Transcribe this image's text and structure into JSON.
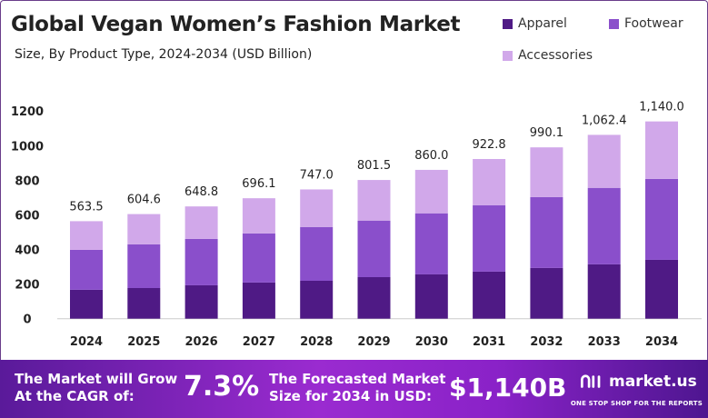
{
  "header": {
    "title": "Global Vegan Women’s Fashion Market",
    "subtitle": "Size, By Product Type, 2024-2034 (USD Billion)"
  },
  "chart_data": {
    "type": "bar",
    "stacked": true,
    "categories": [
      "2024",
      "2025",
      "2026",
      "2027",
      "2028",
      "2029",
      "2030",
      "2031",
      "2032",
      "2033",
      "2034"
    ],
    "series": [
      {
        "name": "Apparel",
        "color": "#4f1a85",
        "values": [
          167,
          177,
          193,
          209,
          219,
          240,
          256,
          272,
          293,
          314,
          340
        ]
      },
      {
        "name": "Footwear",
        "color": "#8a4fcb",
        "values": [
          231,
          253,
          268,
          284,
          311,
          327,
          353,
          384,
          410,
          442,
          468
        ]
      },
      {
        "name": "Accessories",
        "color": "#d1a8ea",
        "values": [
          165.5,
          174.6,
          187.8,
          203.1,
          217,
          234.5,
          251,
          266.8,
          287.1,
          306.4,
          332
        ]
      }
    ],
    "totals": [
      "563.5",
      "604.6",
      "648.8",
      "696.1",
      "747.0",
      "801.5",
      "860.0",
      "922.8",
      "990.1",
      "1,062.4",
      "1,140.0"
    ],
    "yticks": [
      "0",
      "200",
      "400",
      "600",
      "800",
      "1000",
      "1200"
    ],
    "ylim": [
      0,
      1200
    ],
    "grid": false,
    "legend_position": "top-right"
  },
  "banner": {
    "cagr_label": "The Market will Grow At the CAGR of:",
    "cagr_value": "7.3%",
    "forecast_label": "The Forecasted Market Size for 2034 in USD:",
    "forecast_value": "$1,140B",
    "logo": "market.us",
    "tagline": "ONE STOP SHOP FOR THE REPORTS"
  }
}
